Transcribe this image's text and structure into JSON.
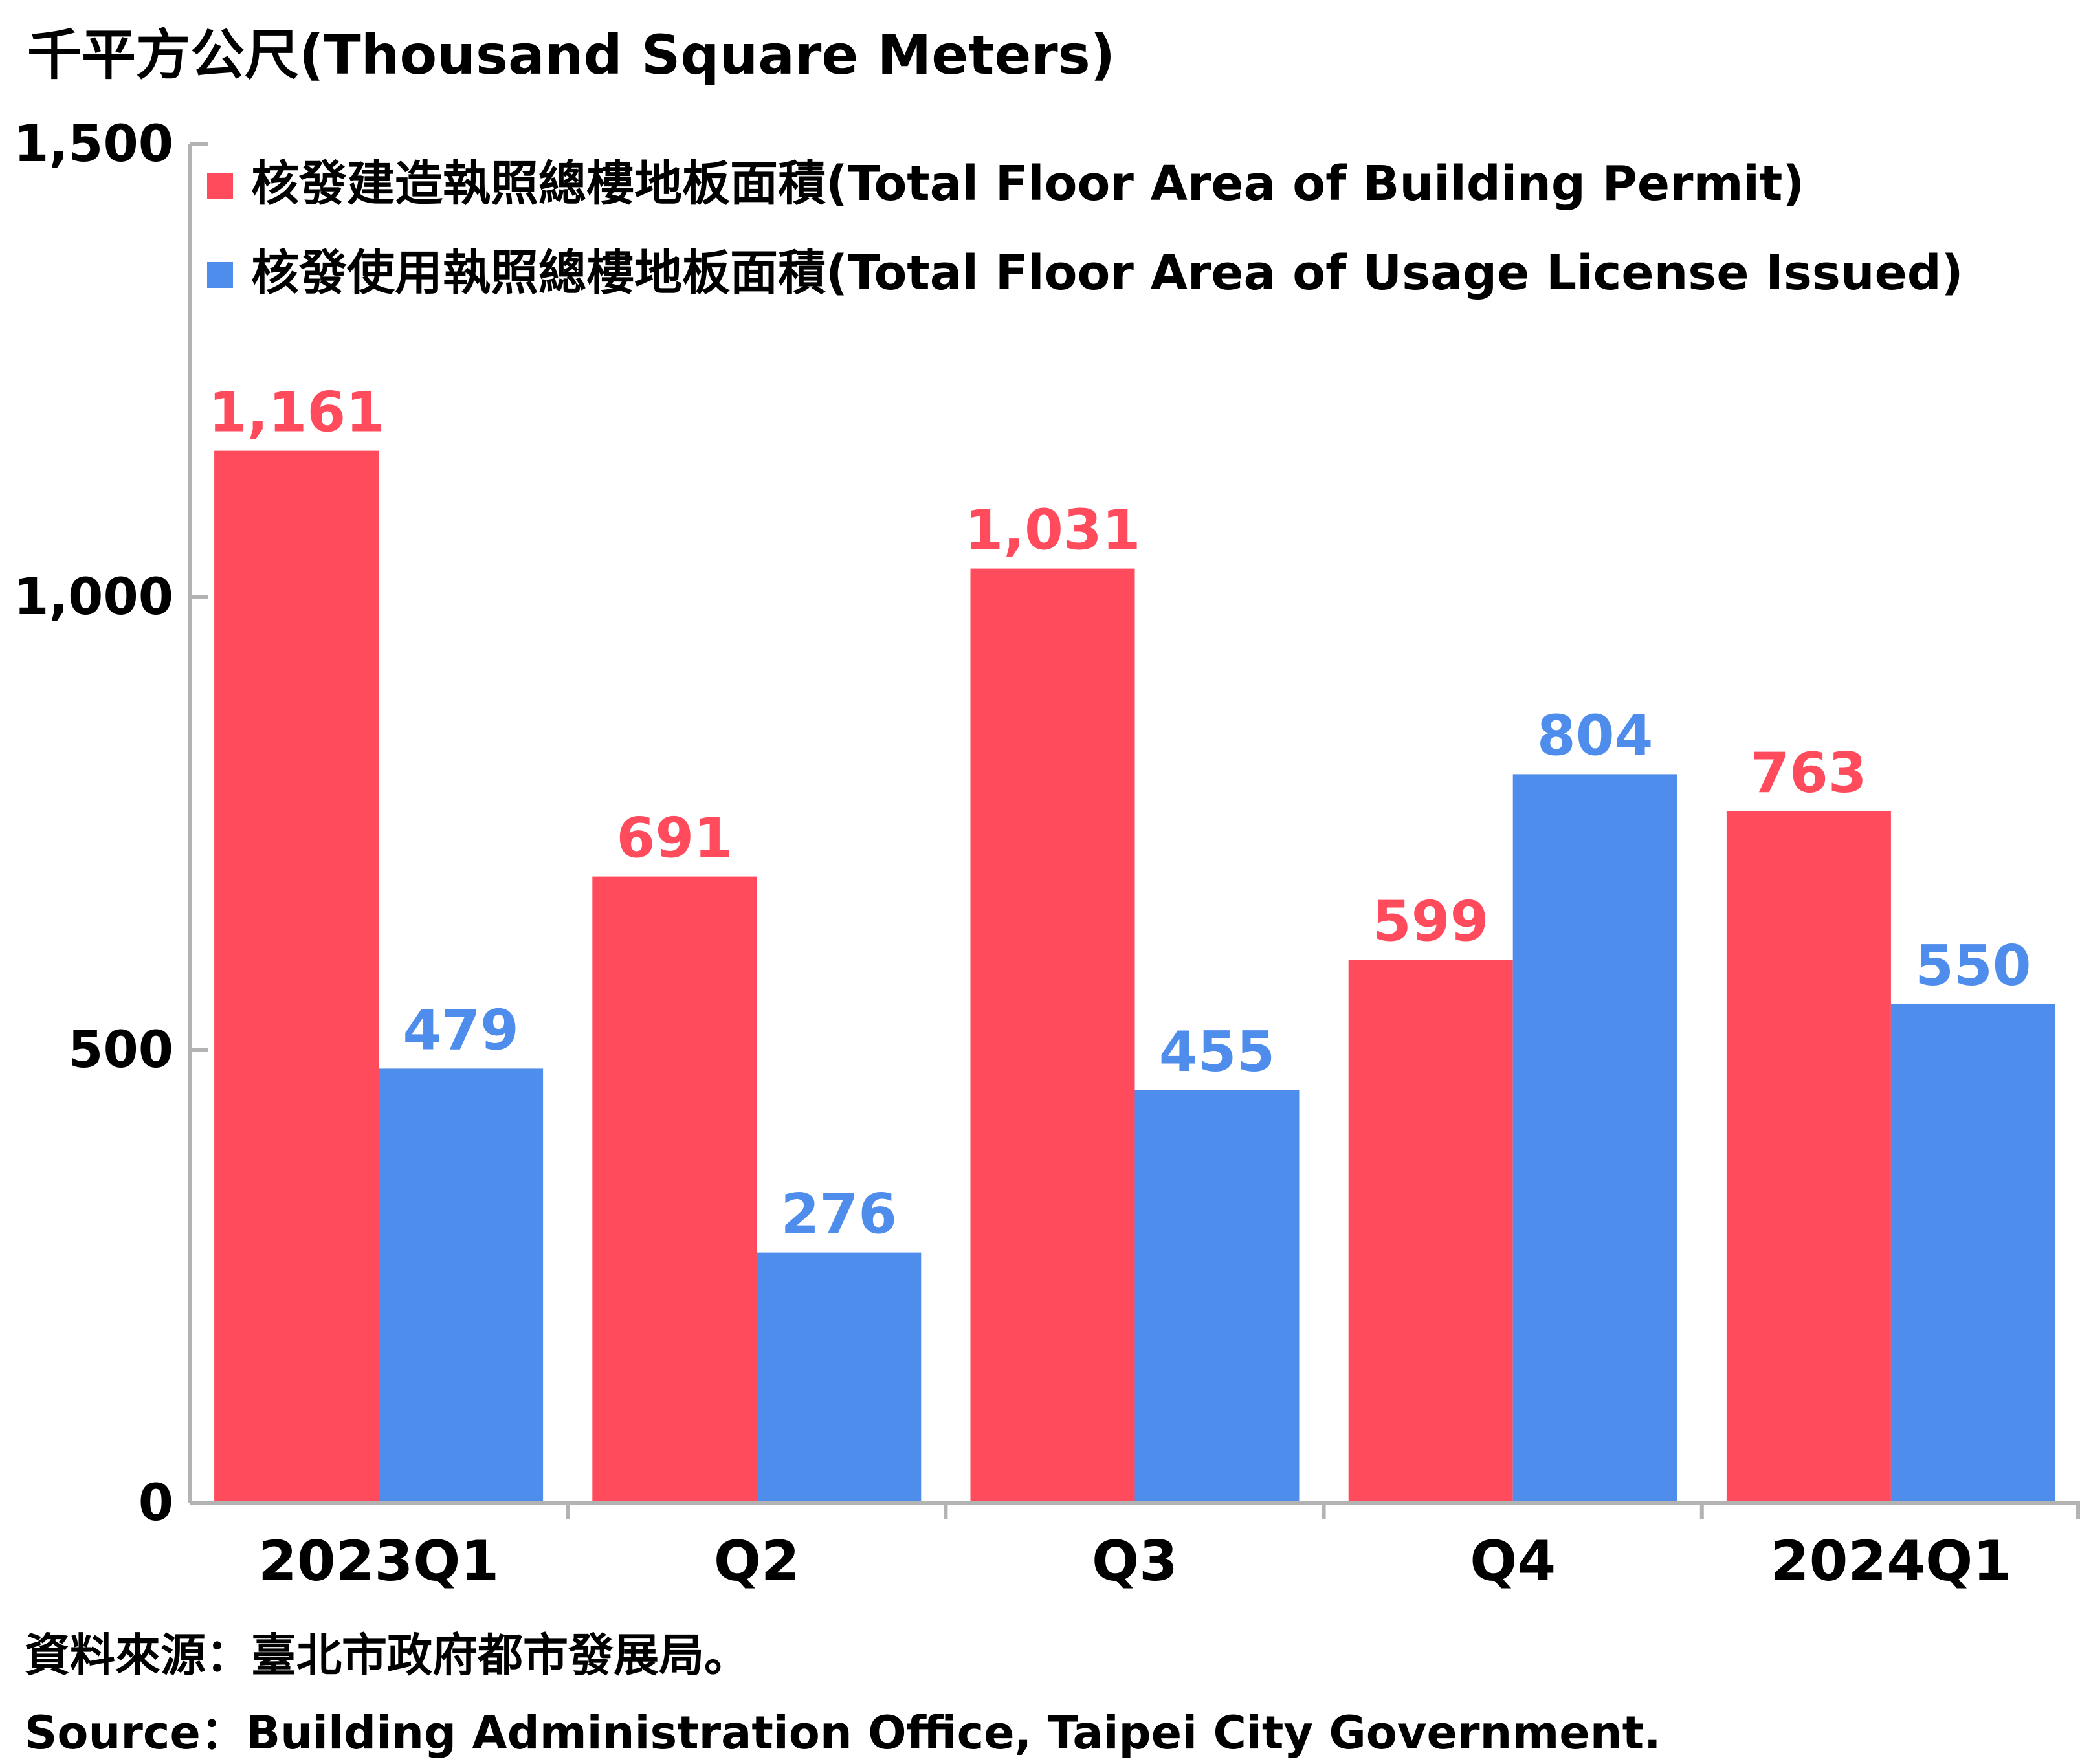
{
  "unit_label": "千平方公尺(Thousand Square Meters)",
  "colors": {
    "permit": "#ff4b5c",
    "license": "#4f8ded",
    "axis": "#b3b3b3",
    "text": "#000000"
  },
  "chart_data": {
    "type": "bar",
    "categories": [
      "2023Q1",
      "Q2",
      "Q3",
      "Q4",
      "2024Q1"
    ],
    "series": [
      {
        "name": "核發建造執照總樓地板面積(Total Floor Area of Building Permit)",
        "values": [
          1161,
          691,
          1031,
          599,
          763
        ],
        "labels": [
          "1,161",
          "691",
          "1,031",
          "599",
          "763"
        ],
        "color": "#ff4b5c"
      },
      {
        "name": "核發使用執照總樓地板面積(Total Floor Area of Usage License Issued)",
        "values": [
          479,
          276,
          455,
          804,
          550
        ],
        "labels": [
          "479",
          "276",
          "455",
          "804",
          "550"
        ],
        "color": "#4f8ded"
      }
    ],
    "ylim": [
      0,
      1500
    ],
    "yticks": [
      0,
      500,
      1000,
      1500
    ],
    "ytick_labels": [
      "0",
      "500",
      "1,000",
      "1,500"
    ],
    "legend_position": "top-left",
    "grid": false
  },
  "source_zh": "資料來源：臺北市政府都市發展局。",
  "source_en": "Source：Building Administration Office, Taipei City Government."
}
